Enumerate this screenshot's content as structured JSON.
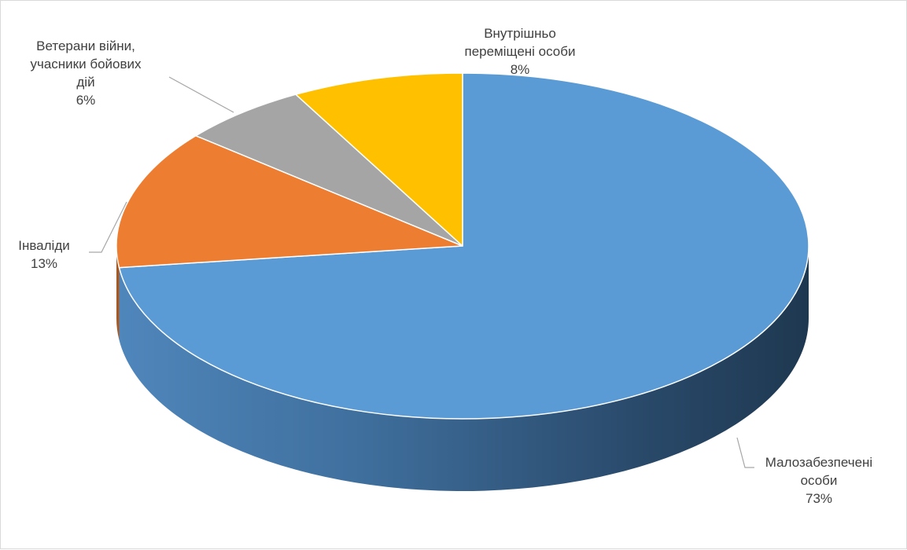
{
  "chart_data": {
    "type": "pie",
    "title": "",
    "legend": "none",
    "categories": [
      "Малозабезпечені особи",
      "Інваліди",
      "Ветерани війни, учасники бойових дій",
      "Внутрішньо переміщені особи"
    ],
    "values": [
      73,
      13,
      6,
      8
    ],
    "colors": [
      "#5b9bd5",
      "#ed7d31",
      "#a5a5a5",
      "#ffc000"
    ],
    "data_labels": [
      {
        "lines": [
          "Малозабезпечені",
          "особи"
        ],
        "percent": "73%"
      },
      {
        "lines": [
          "Інваліди"
        ],
        "percent": "13%"
      },
      {
        "lines": [
          "Ветерани війни,",
          "учасники бойових",
          "дій"
        ],
        "percent": "6%"
      },
      {
        "lines": [
          "Внутрішньо",
          "переміщені особи"
        ],
        "percent": "8%"
      }
    ]
  }
}
